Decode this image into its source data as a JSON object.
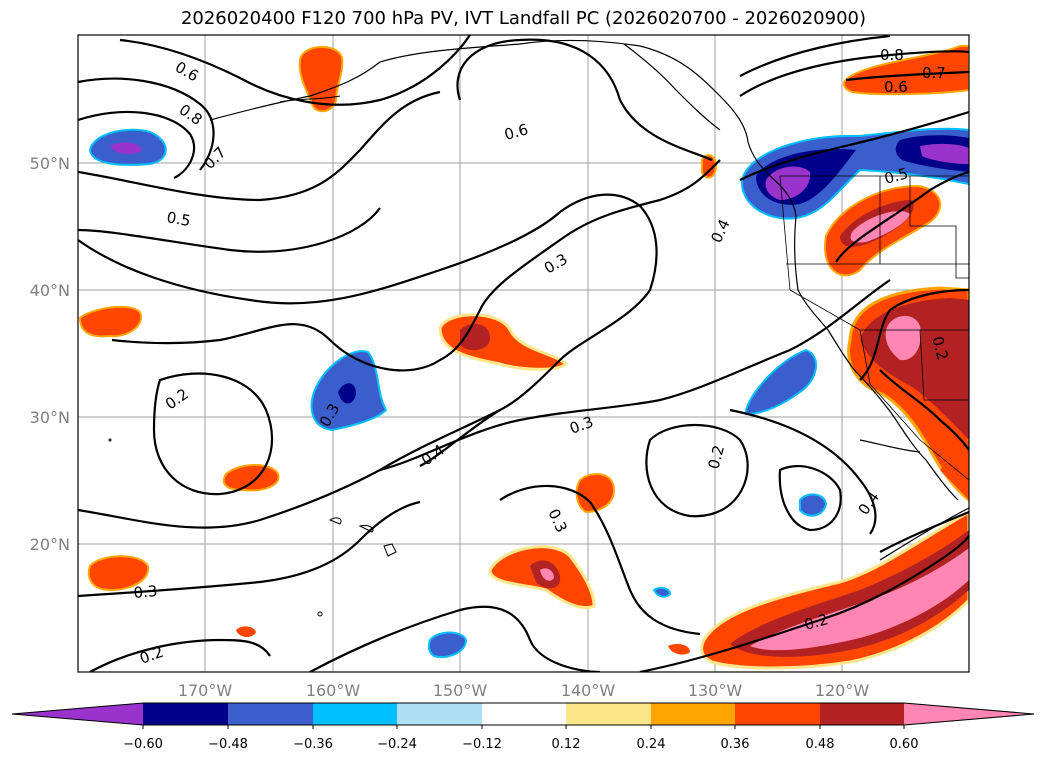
{
  "title": "2026020400 F120 700 hPa PV, IVT Landfall PC (2026020700 - 2026020900)",
  "map": {
    "lat_labels": [
      "50°N",
      "40°N",
      "30°N",
      "20°N"
    ],
    "lon_labels": [
      "170°W",
      "160°W",
      "150°W",
      "140°W",
      "130°W",
      "120°W"
    ],
    "contour_labels": [
      "0.6",
      "0.8",
      "0.7",
      "0.5",
      "0.6",
      "0.4",
      "0.3",
      "0.8",
      "0.7",
      "0.6",
      "0.5",
      "0.2",
      "0.3",
      "0.4",
      "0.3",
      "0.2",
      "0.3",
      "0.4",
      "0.3",
      "0.2",
      "0.2",
      "0.2"
    ],
    "colors": {
      "neg_060": "#8a2be2",
      "neg_048": "#00008b",
      "neg_036": "#3a5fcd",
      "neg_024": "#00bfff",
      "neg_012": "#aee0f5",
      "pos_012": "#fde68a",
      "pos_024": "#ffa500",
      "pos_036": "#ff4500",
      "pos_048": "#b22222",
      "pos_060": "#ff85b3"
    }
  },
  "colorbar": {
    "ticks": [
      "−0.60",
      "−0.48",
      "−0.36",
      "−0.24",
      "−0.12",
      "0.12",
      "0.24",
      "0.36",
      "0.48",
      "0.60"
    ],
    "colors": [
      "#9933cc",
      "#00008b",
      "#3a5fcd",
      "#00bfff",
      "#aee0f5",
      "#ffffff",
      "#fde68a",
      "#ffa500",
      "#ff4500",
      "#b22222",
      "#ff85b3"
    ]
  }
}
